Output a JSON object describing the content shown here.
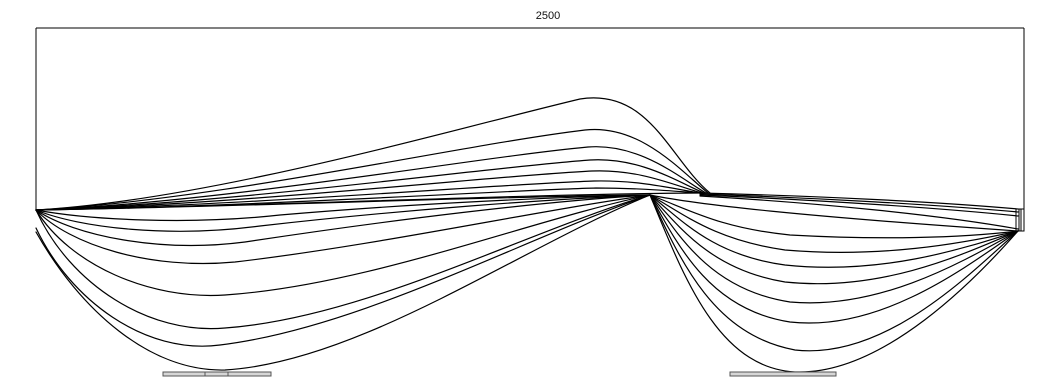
{
  "drawing": {
    "dimension_label": "2500",
    "stroke_color": "#000000",
    "base_fill": "#d6d6d6"
  }
}
